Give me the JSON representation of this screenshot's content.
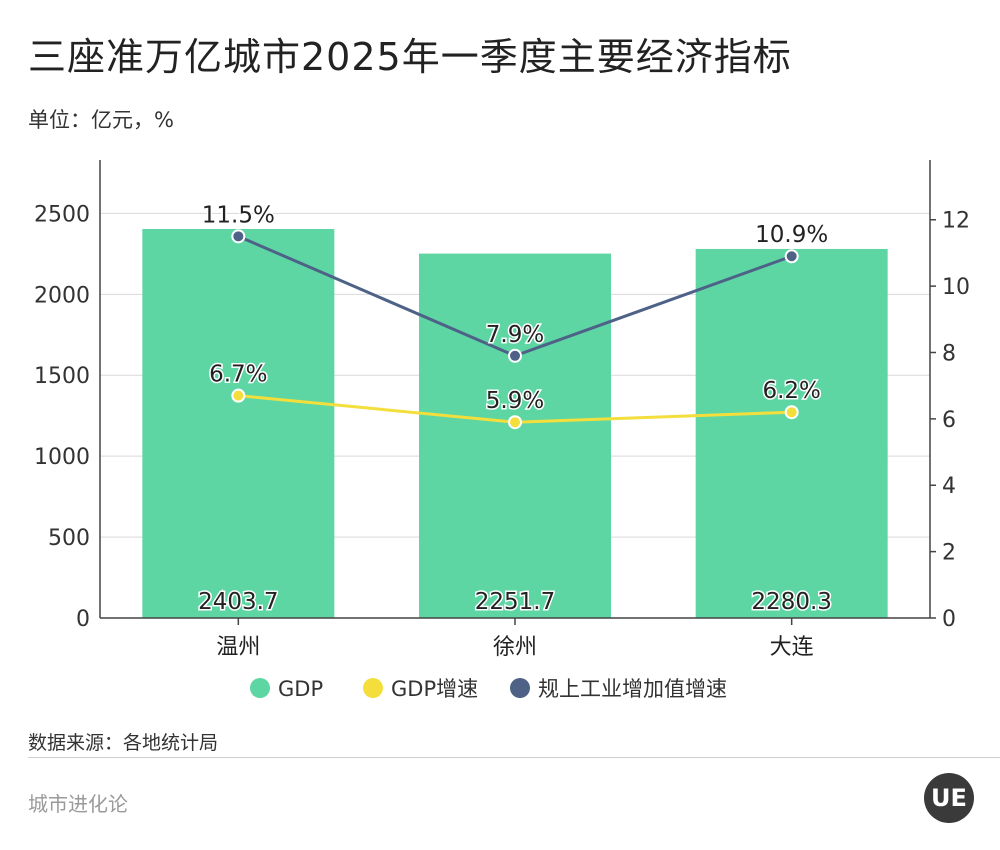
{
  "title": "三座准万亿城市2025年一季度主要经济指标",
  "unit_label": "单位：亿元，%",
  "source": "数据来源：各地统计局",
  "footer": {
    "brand": "城市进化论",
    "logo_text": "UE"
  },
  "chart_data": {
    "type": "bar",
    "categories": [
      "温州",
      "徐州",
      "大连"
    ],
    "series": [
      {
        "name": "GDP",
        "type": "bar",
        "axis": "left",
        "values": [
          2403.7,
          2251.7,
          2280.3
        ],
        "labels": [
          "2403.7",
          "2251.7",
          "2280.3"
        ],
        "color": "#5dd6a4"
      },
      {
        "name": "GDP增速",
        "type": "line",
        "axis": "right",
        "values": [
          6.7,
          5.9,
          6.2
        ],
        "labels": [
          "6.7%",
          "5.9%",
          "6.2%"
        ],
        "color": "#f3de3c"
      },
      {
        "name": "规上工业增加值增速",
        "type": "line",
        "axis": "right",
        "values": [
          11.5,
          7.9,
          10.9
        ],
        "labels": [
          "11.5%",
          "7.9%",
          "10.9%"
        ],
        "color": "#4e6288"
      }
    ],
    "y_left": {
      "min": 0,
      "max": 2830,
      "ticks": [
        0,
        500,
        1000,
        1500,
        2000,
        2500
      ]
    },
    "y_right": {
      "min": 0,
      "max": 13.8,
      "ticks": [
        0,
        2,
        4,
        6,
        8,
        10,
        12
      ]
    },
    "grid": true,
    "legend_position": "bottom"
  }
}
